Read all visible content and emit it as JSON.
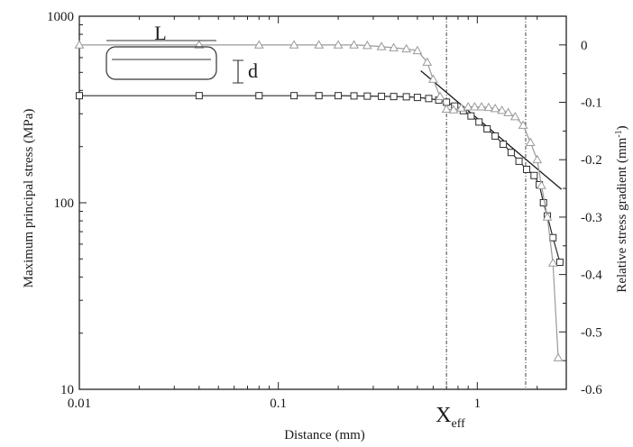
{
  "chart_data": {
    "type": "line",
    "xlabel": "Distance (mm)",
    "ylabel_left": "Maximum principal stress (MPa)",
    "ylabel_right": "Relative stress gradient (mm",
    "ylabel_right_sup": "-1",
    "ylabel_right_close": ")",
    "x_scale": "log",
    "xlim": [
      0.01,
      2.8
    ],
    "y_left_scale": "log",
    "ylim_left": [
      10,
      1000
    ],
    "ylim_right": [
      -0.6,
      0.05
    ],
    "x_ticks": [
      {
        "value": 0.01,
        "label": "0.01"
      },
      {
        "value": 0.1,
        "label": "0.1"
      },
      {
        "value": 1,
        "label": "1"
      }
    ],
    "y_left_ticks": [
      {
        "value": 10,
        "label": "10"
      },
      {
        "value": 100,
        "label": "100"
      },
      {
        "value": 1000,
        "label": "1000"
      }
    ],
    "y_right_ticks": [
      {
        "value": 0,
        "label": "0"
      },
      {
        "value": -0.1,
        "label": "-0.1"
      },
      {
        "value": -0.2,
        "label": "-0.2"
      },
      {
        "value": -0.3,
        "label": "-0.3"
      },
      {
        "value": -0.4,
        "label": "-0.4"
      },
      {
        "value": -0.5,
        "label": "-0.5"
      },
      {
        "value": -0.6,
        "label": "-0.6"
      }
    ],
    "grid": false,
    "legend": "none",
    "series": [
      {
        "marker": "square",
        "axis": "left",
        "color": "#2b2b2b",
        "points": [
          [
            0.01,
            375
          ],
          [
            0.04,
            375
          ],
          [
            0.08,
            375
          ],
          [
            0.12,
            375
          ],
          [
            0.16,
            375
          ],
          [
            0.2,
            375
          ],
          [
            0.24,
            374
          ],
          [
            0.28,
            373
          ],
          [
            0.33,
            372
          ],
          [
            0.38,
            371
          ],
          [
            0.44,
            370
          ],
          [
            0.5,
            367
          ],
          [
            0.57,
            362
          ],
          [
            0.64,
            355
          ],
          [
            0.7,
            346
          ],
          [
            0.77,
            330
          ],
          [
            0.85,
            312
          ],
          [
            0.93,
            292
          ],
          [
            1.02,
            271
          ],
          [
            1.12,
            249
          ],
          [
            1.23,
            228
          ],
          [
            1.35,
            206
          ],
          [
            1.48,
            186
          ],
          [
            1.62,
            167
          ],
          [
            1.77,
            151
          ],
          [
            1.93,
            140
          ],
          [
            2.05,
            125
          ],
          [
            2.15,
            100
          ],
          [
            2.25,
            85
          ],
          [
            2.4,
            65
          ],
          [
            2.6,
            48
          ]
        ]
      },
      {
        "marker": "triangle",
        "axis": "right",
        "color": "#9a9a9a",
        "points": [
          [
            0.01,
            0.0
          ],
          [
            0.04,
            0.0
          ],
          [
            0.08,
            0.0
          ],
          [
            0.12,
            0.0
          ],
          [
            0.16,
            0.0
          ],
          [
            0.2,
            0.0
          ],
          [
            0.24,
            0.0
          ],
          [
            0.28,
            -0.001
          ],
          [
            0.33,
            -0.003
          ],
          [
            0.38,
            -0.005
          ],
          [
            0.44,
            -0.007
          ],
          [
            0.5,
            -0.01
          ],
          [
            0.56,
            -0.03
          ],
          [
            0.6,
            -0.06
          ],
          [
            0.65,
            -0.09
          ],
          [
            0.7,
            -0.112
          ],
          [
            0.76,
            -0.113
          ],
          [
            0.83,
            -0.11
          ],
          [
            0.9,
            -0.108
          ],
          [
            0.97,
            -0.108
          ],
          [
            1.05,
            -0.108
          ],
          [
            1.14,
            -0.109
          ],
          [
            1.23,
            -0.111
          ],
          [
            1.33,
            -0.114
          ],
          [
            1.43,
            -0.118
          ],
          [
            1.55,
            -0.125
          ],
          [
            1.7,
            -0.14
          ],
          [
            1.85,
            -0.17
          ],
          [
            2.0,
            -0.2
          ],
          [
            2.1,
            -0.245
          ],
          [
            2.25,
            -0.3
          ],
          [
            2.4,
            -0.38
          ],
          [
            2.55,
            -0.545
          ]
        ]
      }
    ],
    "tangent_line": {
      "x1": 0.52,
      "y1": 510,
      "x2": 2.65,
      "y2": 118
    },
    "vlines": [
      {
        "x": 0.7,
        "label": "X",
        "label_sub": "eff"
      },
      {
        "x": 1.75,
        "label": "",
        "label_sub": ""
      }
    ],
    "inset": {
      "length_label": "L",
      "depth_label": "d"
    }
  }
}
